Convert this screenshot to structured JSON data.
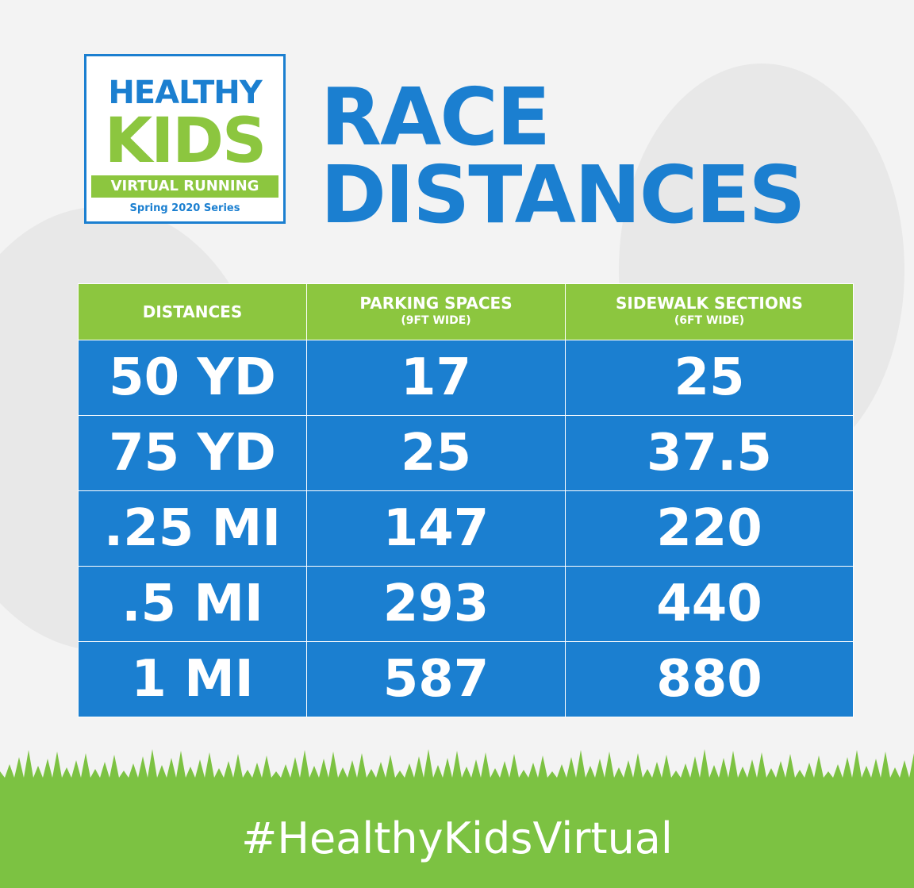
{
  "logo": {
    "line1": "HEALTHY",
    "line2": "KIDS",
    "line3": "VIRTUAL RUNNING",
    "line4": "Spring 2020 Series"
  },
  "title": {
    "line1": "RACE",
    "line2": "DISTANCES"
  },
  "table": {
    "headers": [
      {
        "title": "DISTANCES"
      },
      {
        "title": "PARKING SPACES",
        "subtitle": "(9FT WIDE)"
      },
      {
        "title": "SIDEWALK SECTIONS",
        "subtitle": "(6FT WIDE)"
      }
    ],
    "rows": [
      [
        "50 YD",
        "17",
        "25"
      ],
      [
        "75 YD",
        "25",
        "37.5"
      ],
      [
        ".25 MI",
        "147",
        "220"
      ],
      [
        ".5 MI",
        "293",
        "440"
      ],
      [
        "1 MI",
        "587",
        "880"
      ]
    ]
  },
  "footer": {
    "hashtag": "#HealthyKidsVirtual"
  }
}
